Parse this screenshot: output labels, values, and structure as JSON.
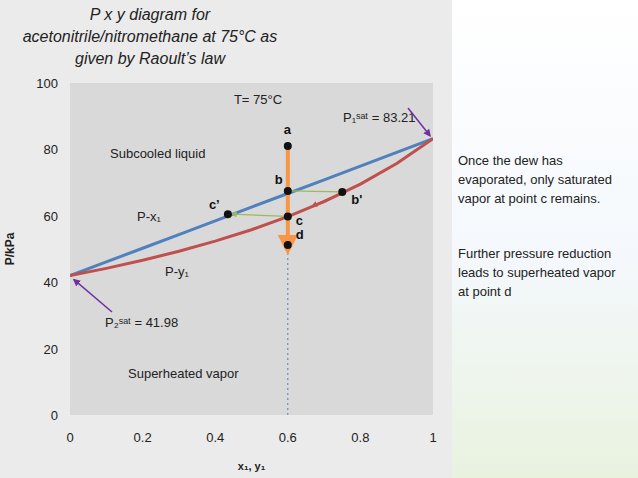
{
  "chart_data": {
    "type": "line",
    "title": "P x y diagram for\nacetonitrile/nitromethane at 75°C as\ngiven by Raoult’s law",
    "x_label": "x₁, y₁",
    "y_label": "P/kPa",
    "x": [
      0,
      0.1,
      0.2,
      0.3,
      0.4,
      0.5,
      0.6,
      0.7,
      0.8,
      0.9,
      1
    ],
    "series": [
      {
        "name": "P-x₁",
        "color": "#4f81bd",
        "values": [
          41.98,
          46.1,
          50.23,
          54.35,
          58.47,
          62.6,
          66.72,
          70.84,
          74.96,
          79.09,
          83.21
        ]
      },
      {
        "name": "P-y₁",
        "color": "#c0504d",
        "values": [
          41.98,
          44.17,
          46.6,
          49.31,
          52.36,
          55.8,
          59.74,
          64.27,
          69.55,
          75.77,
          83.21
        ]
      }
    ],
    "xlim": [
      0,
      1
    ],
    "ylim": [
      0,
      100
    ],
    "xticks": [
      0,
      0.2,
      0.4,
      0.6,
      0.8,
      1
    ],
    "yticks": [
      0,
      20,
      40,
      60,
      80,
      100
    ],
    "grid": false,
    "annotations": [
      "T= 75°C",
      "Subcooled liquid",
      "Superheated vapor",
      "P₁ˢᵃᵗ = 83.21",
      "P₂ˢᵃᵗ = 41.98"
    ],
    "points": [
      {
        "label": "a",
        "x": 0.6,
        "y": 81
      },
      {
        "label": "b",
        "x": 0.6,
        "y": 67.5
      },
      {
        "label": "c",
        "x": 0.6,
        "y": 59.8
      },
      {
        "label": "c’",
        "x": 0.435,
        "y": 60.5
      },
      {
        "label": "d",
        "x": 0.6,
        "y": 51.2
      },
      {
        "label": "b'",
        "x": 0.75,
        "y": 67.2
      }
    ],
    "notes": [
      "Once the dew has evaporated, only saturated vapor at point c remains.",
      "Further pressure reduction leads to superheated vapor at point d"
    ]
  }
}
